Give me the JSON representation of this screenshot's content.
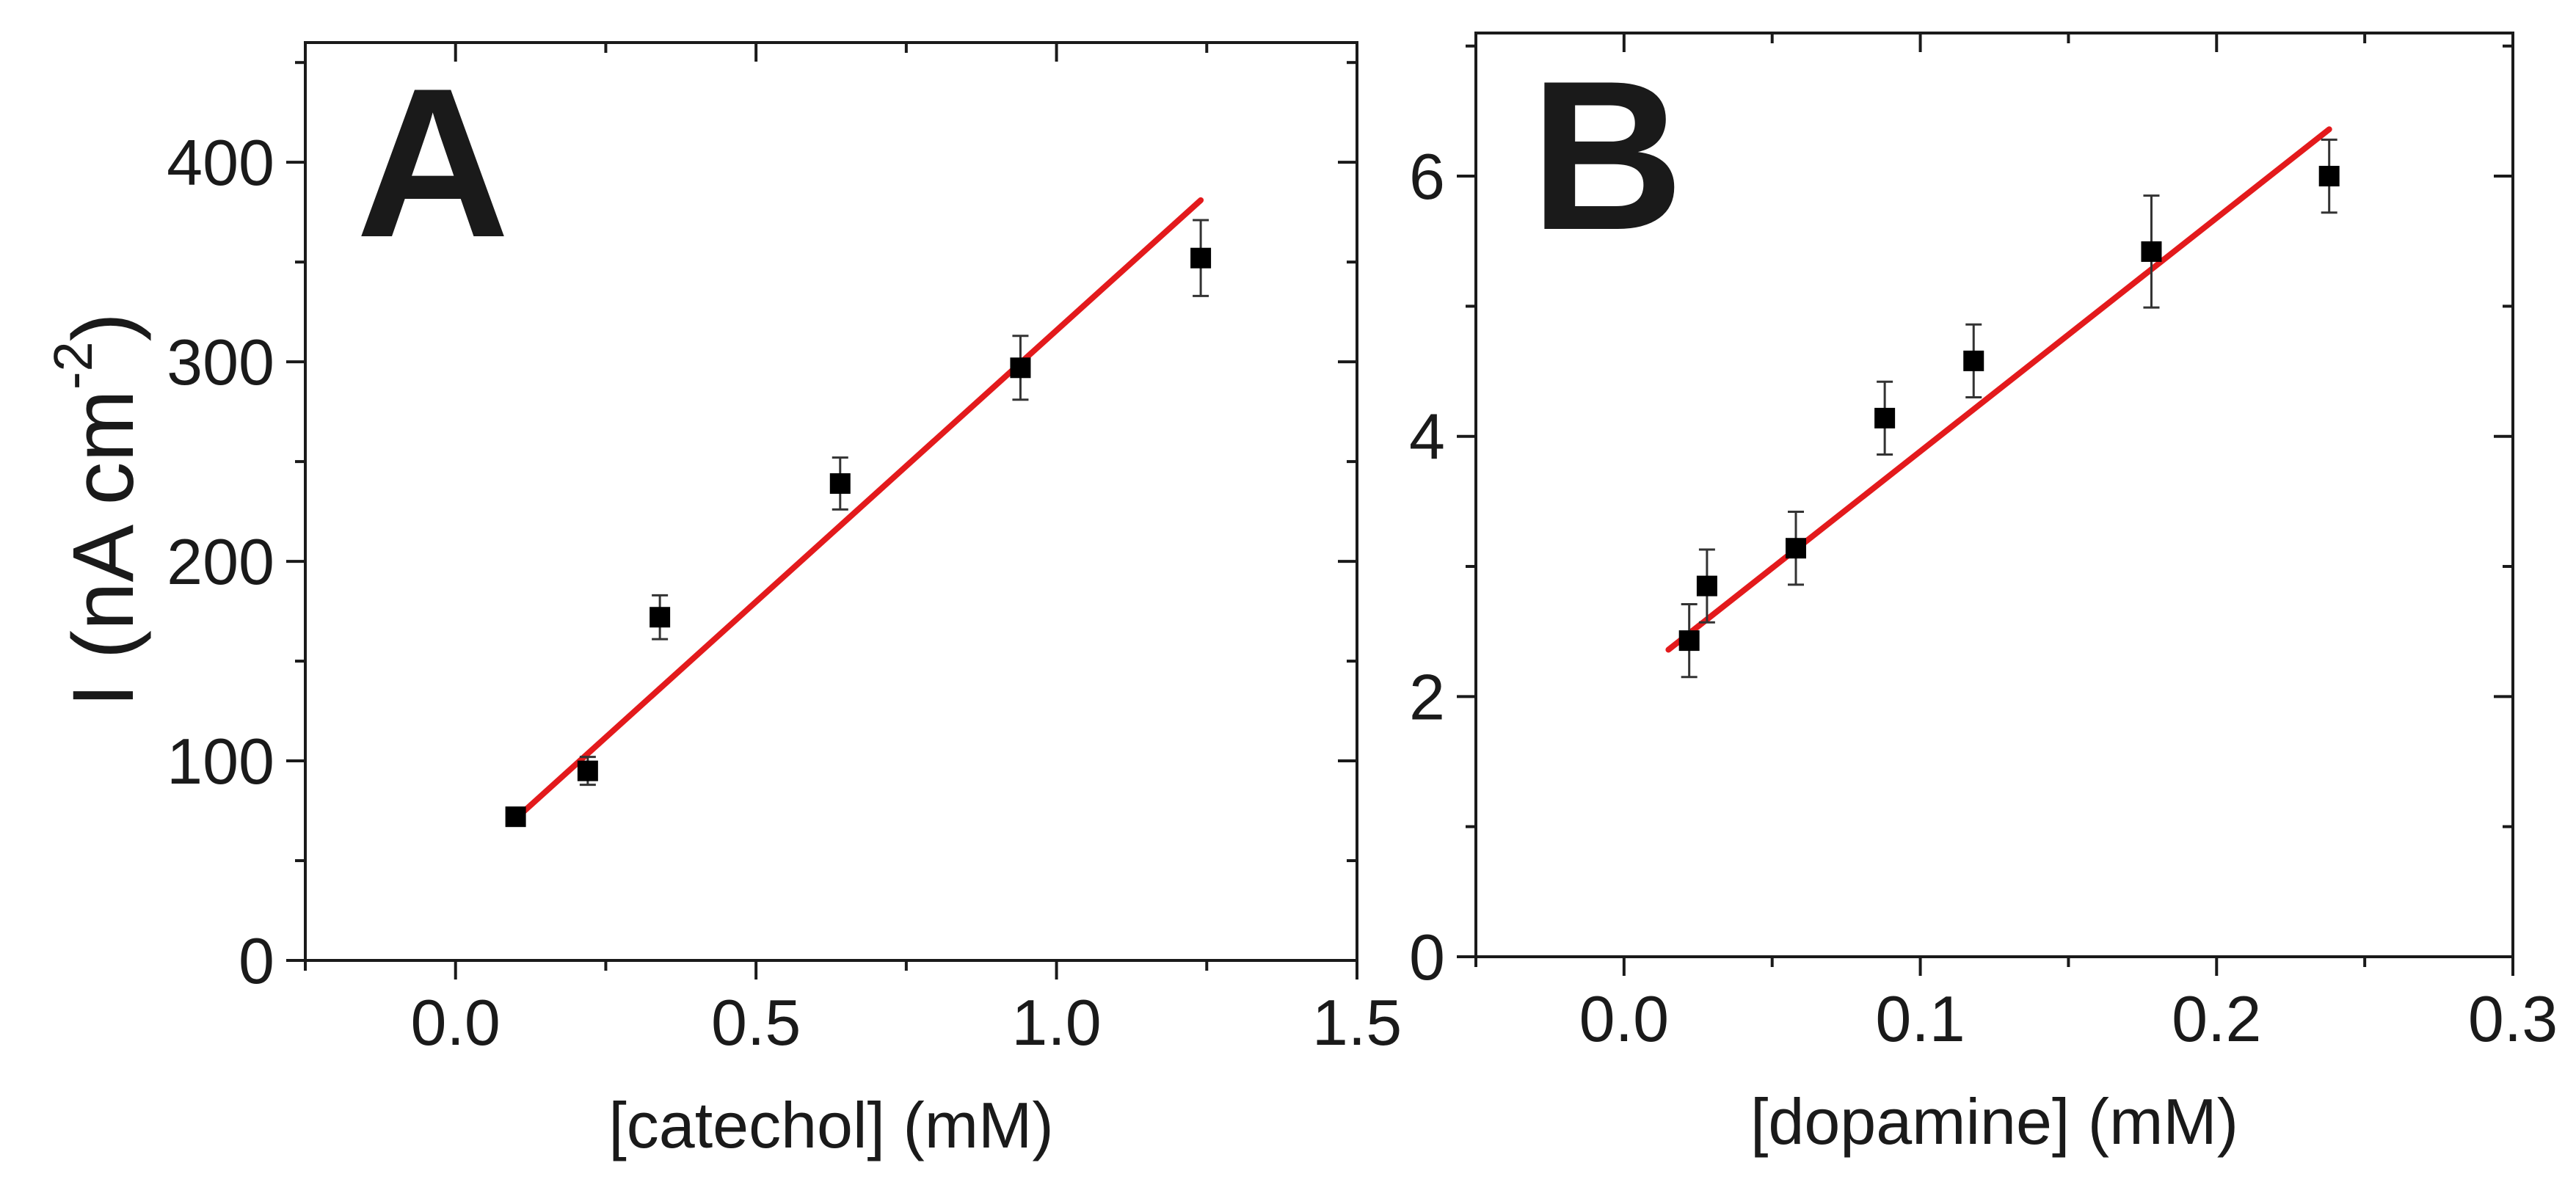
{
  "colors": {
    "fit_line": "#e31a1c",
    "marker": "#000000",
    "axis": "#1a1a1a",
    "background": "#ffffff"
  },
  "chart_data": [
    {
      "type": "scatter",
      "panel_label": "A",
      "xlabel": "[catechol] (mM)",
      "ylabel_main": "I (nA cm",
      "ylabel_sup": "-2",
      "ylabel_close": ")",
      "xlim": [
        -0.25,
        1.5
      ],
      "ylim": [
        0,
        460
      ],
      "xticks": [
        0.0,
        0.5,
        1.0,
        1.5
      ],
      "xtick_labels": [
        "0.0",
        "0.5",
        "1.0",
        "1.5"
      ],
      "yticks": [
        0,
        100,
        200,
        300,
        400
      ],
      "ytick_labels": [
        "0",
        "100",
        "200",
        "300",
        "400"
      ],
      "x_minor_step": 0.25,
      "y_minor_step": 50,
      "points": [
        {
          "x": 0.1,
          "y": 72,
          "err": 3
        },
        {
          "x": 0.22,
          "y": 95,
          "err": 7
        },
        {
          "x": 0.34,
          "y": 172,
          "err": 11
        },
        {
          "x": 0.64,
          "y": 239,
          "err": 13
        },
        {
          "x": 0.94,
          "y": 297,
          "err": 16
        },
        {
          "x": 1.24,
          "y": 352,
          "err": 19
        }
      ],
      "fit": {
        "x": [
          0.1,
          1.24
        ],
        "y": [
          71,
          381
        ]
      }
    },
    {
      "type": "scatter",
      "panel_label": "B",
      "xlabel": "[dopamine] (mM)",
      "xlim": [
        -0.05,
        0.3
      ],
      "ylim": [
        0,
        7.1
      ],
      "xticks": [
        0.0,
        0.1,
        0.2,
        0.3
      ],
      "xtick_labels": [
        "0.0",
        "0.1",
        "0.2",
        "0.3"
      ],
      "yticks": [
        0,
        2,
        4,
        6
      ],
      "ytick_labels": [
        "0",
        "2",
        "4",
        "6"
      ],
      "x_minor_step": 0.05,
      "y_minor_step": 1,
      "points": [
        {
          "x": 0.022,
          "y": 2.43,
          "err": 0.28
        },
        {
          "x": 0.028,
          "y": 2.85,
          "err": 0.28
        },
        {
          "x": 0.058,
          "y": 3.14,
          "err": 0.28
        },
        {
          "x": 0.088,
          "y": 4.14,
          "err": 0.28
        },
        {
          "x": 0.118,
          "y": 4.58,
          "err": 0.28
        },
        {
          "x": 0.178,
          "y": 5.42,
          "err": 0.43
        },
        {
          "x": 0.238,
          "y": 6.0,
          "err": 0.28
        }
      ],
      "fit": {
        "x": [
          0.015,
          0.238
        ],
        "y": [
          2.36,
          6.36
        ]
      }
    }
  ]
}
